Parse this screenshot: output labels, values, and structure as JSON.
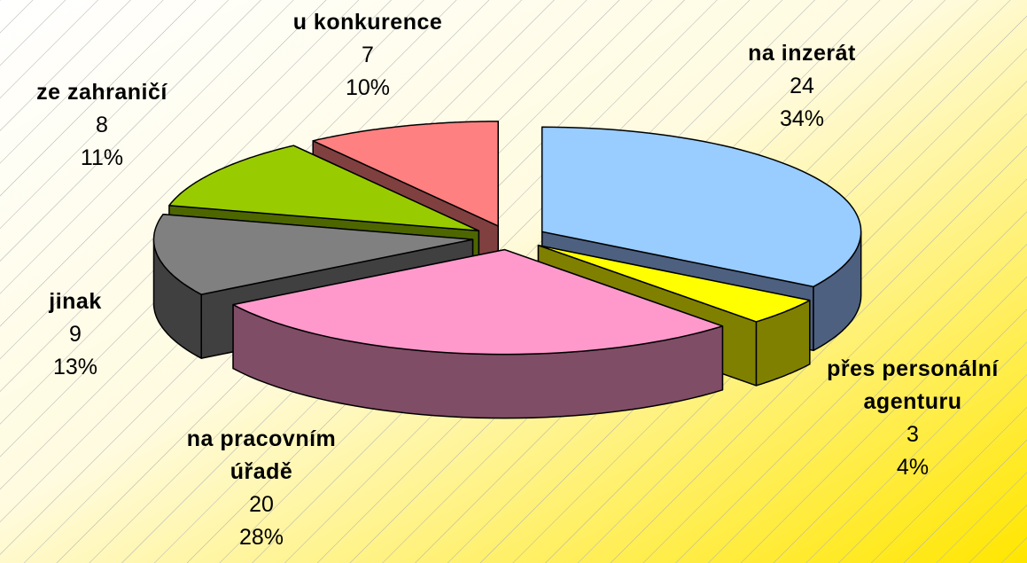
{
  "chart_data": {
    "type": "pie3d",
    "categories": [
      "na inzerát",
      "přes personální agenturu",
      "na pracovním úřadě",
      "jinak",
      "ze zahraničí",
      "u konkurence"
    ],
    "values": [
      24,
      3,
      20,
      9,
      8,
      7
    ],
    "percent_labels": [
      "34%",
      "4%",
      "28%",
      "13%",
      "11%",
      "10%"
    ],
    "colors": [
      "#99ccff",
      "#ffff00",
      "#ff99cc",
      "#808080",
      "#99cc00",
      "#ff8080"
    ],
    "side_colors": [
      "#4d6080",
      "#808000",
      "#804d66",
      "#404040",
      "#4d6600",
      "#804040"
    ]
  }
}
